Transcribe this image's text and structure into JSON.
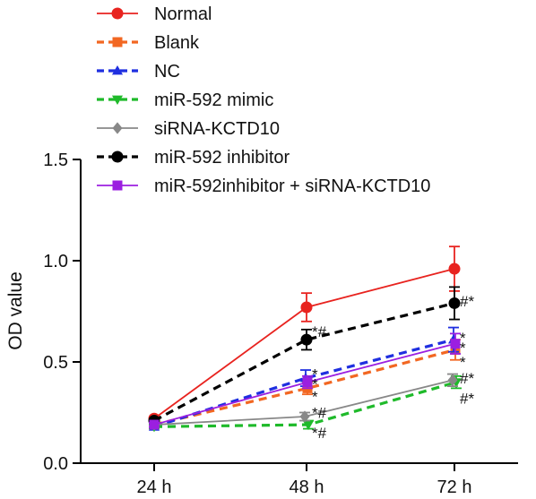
{
  "chart_data": {
    "type": "line",
    "ylabel": "OD value",
    "ylim": [
      0,
      1.5
    ],
    "yticks": [
      "0.0",
      "0.5",
      "1.0",
      "1.5"
    ],
    "categories": [
      "24 h",
      "48 h",
      "72 h"
    ],
    "series": [
      {
        "name": "Normal",
        "color": "#e8231f",
        "dashed": false,
        "marker": "circle",
        "values": [
          0.22,
          0.77,
          0.96
        ],
        "errors": [
          0.01,
          0.07,
          0.11
        ]
      },
      {
        "name": "Blank",
        "color": "#f26722",
        "dashed": true,
        "marker": "square",
        "values": [
          0.19,
          0.37,
          0.56
        ],
        "errors": [
          0.01,
          0.03,
          0.05
        ]
      },
      {
        "name": "NC",
        "color": "#1f2fe0",
        "dashed": true,
        "marker": "triangle-up",
        "values": [
          0.18,
          0.42,
          0.61
        ],
        "errors": [
          0.01,
          0.04,
          0.06
        ]
      },
      {
        "name": "miR-592 mimic",
        "color": "#1fba2a",
        "dashed": true,
        "marker": "triangle-down",
        "values": [
          0.18,
          0.19,
          0.4
        ],
        "errors": [
          0.01,
          0.02,
          0.03
        ]
      },
      {
        "name": "siRNA-KCTD10",
        "color": "#888888",
        "dashed": false,
        "marker": "diamond",
        "values": [
          0.19,
          0.23,
          0.41
        ],
        "errors": [
          0.01,
          0.02,
          0.03
        ]
      },
      {
        "name": "miR-592 inhibitor",
        "color": "#000000",
        "dashed": true,
        "marker": "circle",
        "values": [
          0.21,
          0.61,
          0.79
        ],
        "errors": [
          0.01,
          0.05,
          0.08
        ]
      },
      {
        "name": "miR-592inhibitor + siRNA-KCTD10",
        "color": "#9b1fe0",
        "dashed": false,
        "marker": "square",
        "values": [
          0.19,
          0.4,
          0.59
        ],
        "errors": [
          0.01,
          0.03,
          0.05
        ]
      }
    ],
    "annotations": [
      {
        "text": "*#",
        "category": "48 h",
        "y": 0.655
      },
      {
        "text": "*",
        "category": "48 h",
        "y": 0.445
      },
      {
        "text": "*",
        "category": "48 h",
        "y": 0.395
      },
      {
        "text": "*",
        "category": "48 h",
        "y": 0.335
      },
      {
        "text": "*#",
        "category": "48 h",
        "y": 0.255
      },
      {
        "text": "*#",
        "category": "48 h",
        "y": 0.155
      },
      {
        "text": "#*",
        "category": "72 h",
        "y": 0.805
      },
      {
        "text": "*",
        "category": "72 h",
        "y": 0.625
      },
      {
        "text": "*",
        "category": "72 h",
        "y": 0.575
      },
      {
        "text": "*",
        "category": "72 h",
        "y": 0.505
      },
      {
        "text": "#*",
        "category": "72 h",
        "y": 0.425
      },
      {
        "text": "#*",
        "category": "72 h",
        "y": 0.325
      }
    ],
    "grid": false,
    "legend_position": "top"
  }
}
